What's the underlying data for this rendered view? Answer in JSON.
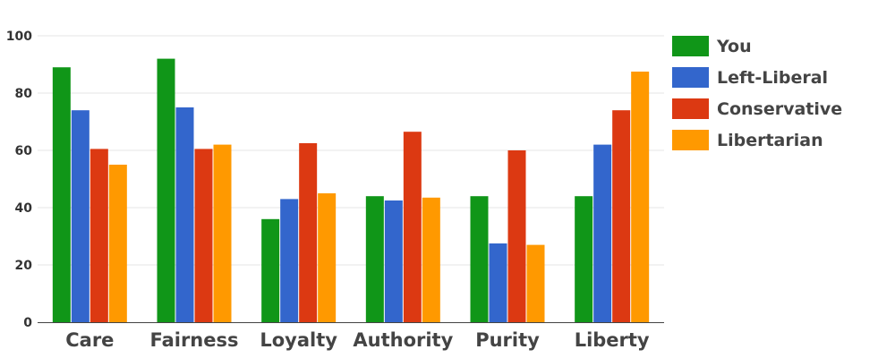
{
  "chart_data": {
    "type": "bar",
    "categories": [
      "Care",
      "Fairness",
      "Loyalty",
      "Authority",
      "Purity",
      "Liberty"
    ],
    "series": [
      {
        "name": "You",
        "color": "#109618",
        "values": [
          89,
          92,
          36,
          44,
          44,
          44
        ]
      },
      {
        "name": "Left-Liberal",
        "color": "#3366cc",
        "values": [
          74,
          75,
          43,
          42.5,
          27.5,
          62
        ]
      },
      {
        "name": "Conservative",
        "color": "#dc3912",
        "values": [
          60.5,
          60.5,
          62.5,
          66.5,
          60,
          74
        ]
      },
      {
        "name": "Libertarian",
        "color": "#ff9900",
        "values": [
          55,
          62,
          45,
          43.5,
          27,
          87.5
        ]
      }
    ],
    "yticks": [
      "0",
      "20",
      "40",
      "60",
      "80",
      "100"
    ],
    "ylim": [
      0,
      100
    ],
    "grid": true,
    "legend_position": "right"
  }
}
